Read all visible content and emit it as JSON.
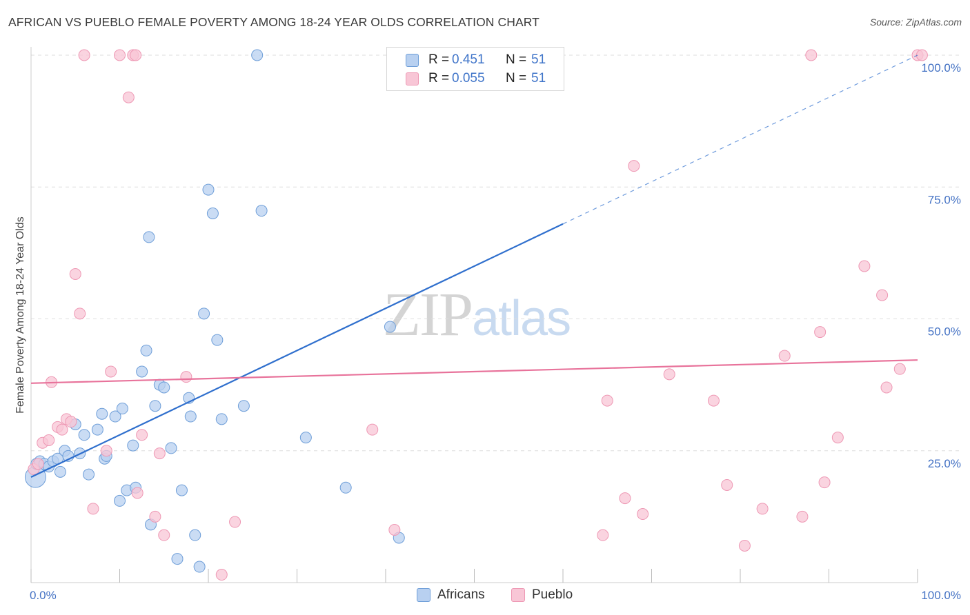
{
  "header": {
    "title": "AFRICAN VS PUEBLO FEMALE POVERTY AMONG 18-24 YEAR OLDS CORRELATION CHART",
    "source": "Source: ZipAtlas.com"
  },
  "watermark": {
    "zip": "ZIP",
    "atlas": "atlas"
  },
  "legend": {
    "rows": [
      {
        "r_label": "R =",
        "r_value": "0.451",
        "n_label": "N =",
        "n_value": "51"
      },
      {
        "r_label": "R =",
        "r_value": "0.055",
        "n_label": "N =",
        "n_value": "51"
      }
    ]
  },
  "bottom_legend": {
    "africans": "Africans",
    "pueblo": "Pueblo"
  },
  "colors": {
    "africans_fill": "#b8d0f0",
    "africans_stroke": "#6e9ed8",
    "africans_line": "#2f6fcd",
    "pueblo_fill": "#f8c6d6",
    "pueblo_stroke": "#ee98b4",
    "pueblo_line": "#e8739b",
    "tick_text": "#4472c4",
    "grid": "#dddddd"
  },
  "chart_data": {
    "type": "scatter",
    "title": "AFRICAN VS PUEBLO FEMALE POVERTY AMONG 18-24 YEAR OLDS CORRELATION CHART",
    "xlabel": "",
    "ylabel": "Female Poverty Among 18-24 Year Olds",
    "xlim": [
      0,
      100
    ],
    "ylim": [
      0,
      100
    ],
    "x_ticks": [
      "0.0%",
      "100.0%"
    ],
    "y_ticks": [
      {
        "value": 25,
        "label": "25.0%"
      },
      {
        "value": 50,
        "label": "50.0%"
      },
      {
        "value": 75,
        "label": "75.0%"
      },
      {
        "value": 100,
        "label": "100.0%"
      }
    ],
    "grid": true,
    "legend_position": "top-center",
    "series": [
      {
        "name": "Africans",
        "points": [
          [
            0.5,
            20.0
          ],
          [
            0.6,
            22.5
          ],
          [
            1.0,
            23.0
          ],
          [
            1.5,
            22.5
          ],
          [
            2.0,
            22.0
          ],
          [
            2.5,
            23.0
          ],
          [
            3.0,
            23.5
          ],
          [
            3.3,
            21.0
          ],
          [
            3.8,
            25.0
          ],
          [
            4.2,
            24.0
          ],
          [
            5.0,
            30.0
          ],
          [
            5.5,
            24.5
          ],
          [
            6.0,
            28.0
          ],
          [
            6.5,
            20.5
          ],
          [
            7.5,
            29.0
          ],
          [
            8.0,
            32.0
          ],
          [
            8.3,
            23.5
          ],
          [
            8.5,
            24.0
          ],
          [
            9.5,
            31.5
          ],
          [
            10.0,
            15.5
          ],
          [
            10.3,
            33.0
          ],
          [
            10.8,
            17.5
          ],
          [
            11.5,
            26.0
          ],
          [
            11.8,
            18.0
          ],
          [
            12.5,
            40.0
          ],
          [
            13.0,
            44.0
          ],
          [
            13.3,
            65.5
          ],
          [
            13.5,
            11.0
          ],
          [
            14.0,
            33.5
          ],
          [
            14.5,
            37.5
          ],
          [
            15.0,
            37.0
          ],
          [
            15.8,
            25.5
          ],
          [
            16.5,
            4.5
          ],
          [
            17.0,
            17.5
          ],
          [
            17.8,
            35.0
          ],
          [
            18.0,
            31.5
          ],
          [
            18.5,
            9.0
          ],
          [
            19.0,
            3.0
          ],
          [
            19.5,
            51.0
          ],
          [
            20.0,
            74.5
          ],
          [
            20.5,
            70.0
          ],
          [
            21.0,
            46.0
          ],
          [
            21.5,
            31.0
          ],
          [
            24.0,
            33.5
          ],
          [
            25.5,
            100.0
          ],
          [
            26.0,
            70.5
          ],
          [
            31.0,
            27.5
          ],
          [
            35.5,
            18.0
          ],
          [
            40.5,
            48.5
          ],
          [
            41.5,
            8.5
          ],
          [
            55.5,
            100.0
          ]
        ],
        "trend": {
          "x": [
            0,
            100
          ],
          "y": [
            20.0,
            100.0
          ],
          "solid_until_x": 60
        }
      },
      {
        "name": "Pueblo",
        "points": [
          [
            0.3,
            21.5
          ],
          [
            0.8,
            22.5
          ],
          [
            1.3,
            26.5
          ],
          [
            2.0,
            27.0
          ],
          [
            2.3,
            38.0
          ],
          [
            3.0,
            29.5
          ],
          [
            3.5,
            29.0
          ],
          [
            4.0,
            31.0
          ],
          [
            4.5,
            30.5
          ],
          [
            5.0,
            58.5
          ],
          [
            5.5,
            51.0
          ],
          [
            6.0,
            100.0
          ],
          [
            7.0,
            14.0
          ],
          [
            8.5,
            25.0
          ],
          [
            9.0,
            40.0
          ],
          [
            10.0,
            100.0
          ],
          [
            11.0,
            92.0
          ],
          [
            11.5,
            100.0
          ],
          [
            11.8,
            100.0
          ],
          [
            12.0,
            17.0
          ],
          [
            12.5,
            28.0
          ],
          [
            14.0,
            12.5
          ],
          [
            14.5,
            24.5
          ],
          [
            15.0,
            9.0
          ],
          [
            17.5,
            39.0
          ],
          [
            21.5,
            1.5
          ],
          [
            23.0,
            11.5
          ],
          [
            38.5,
            29.0
          ],
          [
            41.0,
            10.0
          ],
          [
            64.5,
            9.0
          ],
          [
            65.0,
            34.5
          ],
          [
            67.0,
            16.0
          ],
          [
            68.0,
            79.0
          ],
          [
            69.0,
            13.0
          ],
          [
            72.0,
            39.5
          ],
          [
            77.0,
            34.5
          ],
          [
            78.5,
            18.5
          ],
          [
            80.5,
            7.0
          ],
          [
            82.5,
            14.0
          ],
          [
            85.0,
            43.0
          ],
          [
            87.0,
            12.5
          ],
          [
            88.0,
            100.0
          ],
          [
            89.0,
            47.5
          ],
          [
            89.5,
            19.0
          ],
          [
            91.0,
            27.5
          ],
          [
            94.0,
            60.0
          ],
          [
            96.0,
            54.5
          ],
          [
            96.5,
            37.0
          ],
          [
            98.0,
            40.5
          ],
          [
            100.0,
            100.0
          ],
          [
            100.5,
            100.0
          ]
        ],
        "trend": {
          "x": [
            0,
            100
          ],
          "y": [
            37.8,
            42.2
          ]
        }
      }
    ]
  }
}
